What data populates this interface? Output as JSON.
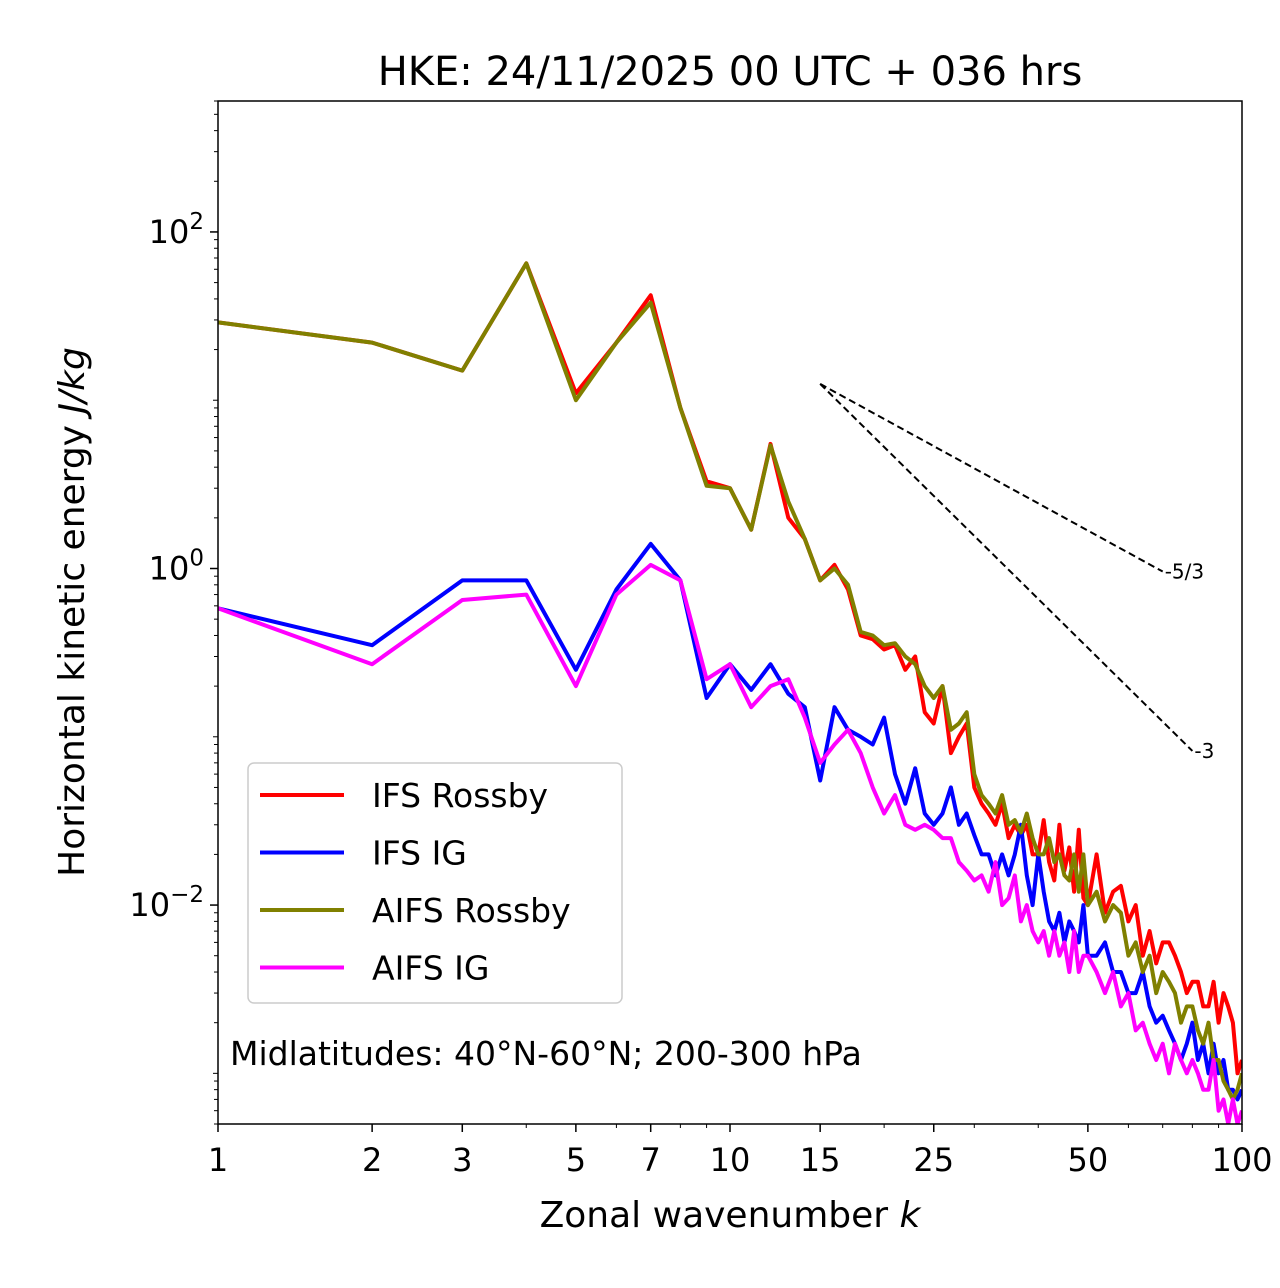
{
  "chart_data": {
    "type": "line",
    "title": "HKE: 24/11/2025 00 UTC + 036 hrs",
    "xlabel_main": "Zonal wavenumber ",
    "xlabel_italic": "k",
    "ylabel_main": "Horizontal kinetic energy ",
    "ylabel_italic": "J/kg",
    "xscale": "log",
    "yscale": "log",
    "xlim": [
      1,
      100
    ],
    "ylim": [
      0.0005,
      600
    ],
    "x_ticks": [
      {
        "value": 1,
        "label": "1"
      },
      {
        "value": 2,
        "label": "2"
      },
      {
        "value": 3,
        "label": "3"
      },
      {
        "value": 5,
        "label": "5"
      },
      {
        "value": 7,
        "label": "7"
      },
      {
        "value": 10,
        "label": "10"
      },
      {
        "value": 15,
        "label": "15"
      },
      {
        "value": 25,
        "label": "25"
      },
      {
        "value": 50,
        "label": "50"
      },
      {
        "value": 100,
        "label": "100"
      }
    ],
    "y_ticks": [
      {
        "value": 100,
        "base": "10",
        "exp": "2"
      },
      {
        "value": 1,
        "base": "10",
        "exp": "0"
      },
      {
        "value": 0.01,
        "base": "10",
        "exp": "−2"
      }
    ],
    "legend_position": "lower-left",
    "annotation": "Midlatitudes: 40°N-60°N; 200-300 hPa",
    "reference_slopes": [
      {
        "label": "-5/3",
        "slope": -1.6667,
        "x_start": 15,
        "x_end": 70,
        "y_start": 12.5
      },
      {
        "label": "-3",
        "slope": -3,
        "x_start": 15,
        "x_end": 80,
        "y_start": 12.5
      }
    ],
    "series": [
      {
        "name": "IFS Rossby",
        "color": "#ff0000",
        "x": [
          1,
          2,
          3,
          4,
          5,
          6,
          7,
          8,
          9,
          10,
          11,
          12,
          13,
          14,
          15,
          16,
          17,
          18,
          19,
          20,
          21,
          22,
          23,
          24,
          25,
          26,
          27,
          28,
          29,
          30,
          31,
          32,
          33,
          34,
          35,
          36,
          37,
          38,
          39,
          40,
          41,
          42,
          43,
          44,
          45,
          46,
          47,
          48,
          49,
          50,
          52,
          54,
          56,
          58,
          60,
          62,
          64,
          66,
          68,
          70,
          72,
          74,
          76,
          78,
          80,
          82,
          84,
          86,
          88,
          90,
          92,
          94,
          96,
          98,
          100
        ],
        "y": [
          29,
          22,
          15,
          65,
          11,
          22,
          42,
          9,
          3.3,
          3,
          1.7,
          5.5,
          2,
          1.5,
          0.85,
          1.05,
          0.75,
          0.4,
          0.38,
          0.33,
          0.35,
          0.25,
          0.3,
          0.14,
          0.12,
          0.2,
          0.08,
          0.1,
          0.12,
          0.05,
          0.04,
          0.035,
          0.03,
          0.04,
          0.025,
          0.03,
          0.026,
          0.03,
          0.02,
          0.02,
          0.032,
          0.018,
          0.014,
          0.03,
          0.016,
          0.022,
          0.012,
          0.028,
          0.011,
          0.01,
          0.02,
          0.009,
          0.012,
          0.013,
          0.008,
          0.01,
          0.005,
          0.007,
          0.0045,
          0.006,
          0.006,
          0.005,
          0.004,
          0.003,
          0.0035,
          0.0035,
          0.0025,
          0.0025,
          0.0035,
          0.002,
          0.003,
          0.0025,
          0.002,
          0.001,
          0.0012
        ]
      },
      {
        "name": "IFS IG",
        "color": "#0000ff",
        "x": [
          1,
          2,
          3,
          4,
          5,
          6,
          7,
          8,
          9,
          10,
          11,
          12,
          13,
          14,
          15,
          16,
          17,
          18,
          19,
          20,
          21,
          22,
          23,
          24,
          25,
          26,
          27,
          28,
          29,
          30,
          31,
          32,
          33,
          34,
          35,
          36,
          37,
          38,
          39,
          40,
          41,
          42,
          43,
          44,
          45,
          46,
          47,
          48,
          49,
          50,
          52,
          54,
          56,
          58,
          60,
          62,
          64,
          66,
          68,
          70,
          72,
          74,
          76,
          78,
          80,
          82,
          84,
          86,
          88,
          90,
          92,
          94,
          96,
          98,
          100
        ],
        "y": [
          0.58,
          0.35,
          0.85,
          0.85,
          0.25,
          0.75,
          1.4,
          0.85,
          0.17,
          0.27,
          0.19,
          0.27,
          0.18,
          0.15,
          0.055,
          0.15,
          0.11,
          0.1,
          0.09,
          0.13,
          0.06,
          0.04,
          0.065,
          0.035,
          0.03,
          0.035,
          0.05,
          0.03,
          0.035,
          0.026,
          0.02,
          0.02,
          0.015,
          0.02,
          0.015,
          0.02,
          0.03,
          0.015,
          0.01,
          0.02,
          0.012,
          0.008,
          0.007,
          0.009,
          0.006,
          0.008,
          0.007,
          0.006,
          0.01,
          0.005,
          0.005,
          0.006,
          0.004,
          0.004,
          0.003,
          0.003,
          0.004,
          0.0025,
          0.002,
          0.0022,
          0.0018,
          0.0015,
          0.0012,
          0.0015,
          0.002,
          0.0012,
          0.0015,
          0.001,
          0.0015,
          0.001,
          0.0012,
          0.0008,
          0.0008,
          0.0007,
          0.0008
        ]
      },
      {
        "name": "AIFS Rossby",
        "color": "#808000",
        "x": [
          1,
          2,
          3,
          4,
          5,
          6,
          7,
          8,
          9,
          10,
          11,
          12,
          13,
          14,
          15,
          16,
          17,
          18,
          19,
          20,
          21,
          22,
          23,
          24,
          25,
          26,
          27,
          28,
          29,
          30,
          31,
          32,
          33,
          34,
          35,
          36,
          37,
          38,
          39,
          40,
          41,
          42,
          43,
          44,
          45,
          46,
          47,
          48,
          49,
          50,
          52,
          54,
          56,
          58,
          60,
          62,
          64,
          66,
          68,
          70,
          72,
          74,
          76,
          78,
          80,
          82,
          84,
          86,
          88,
          90,
          92,
          94,
          96,
          98,
          100
        ],
        "y": [
          29,
          22,
          15,
          65,
          10,
          22,
          38,
          9,
          3.1,
          3,
          1.7,
          5.4,
          2.5,
          1.5,
          0.85,
          1,
          0.8,
          0.42,
          0.4,
          0.35,
          0.36,
          0.3,
          0.27,
          0.2,
          0.17,
          0.2,
          0.11,
          0.12,
          0.14,
          0.06,
          0.045,
          0.04,
          0.035,
          0.045,
          0.03,
          0.032,
          0.027,
          0.035,
          0.025,
          0.02,
          0.02,
          0.025,
          0.018,
          0.02,
          0.015,
          0.014,
          0.02,
          0.012,
          0.02,
          0.01,
          0.012,
          0.008,
          0.01,
          0.009,
          0.005,
          0.006,
          0.004,
          0.005,
          0.003,
          0.004,
          0.0035,
          0.003,
          0.002,
          0.0025,
          0.0025,
          0.0018,
          0.0015,
          0.002,
          0.0012,
          0.0012,
          0.0009,
          0.0008,
          0.0007,
          0.0008,
          0.001
        ]
      },
      {
        "name": "AIFS IG",
        "color": "#ff00ff",
        "x": [
          1,
          2,
          3,
          4,
          5,
          6,
          7,
          8,
          9,
          10,
          11,
          12,
          13,
          14,
          15,
          16,
          17,
          18,
          19,
          20,
          21,
          22,
          23,
          24,
          25,
          26,
          27,
          28,
          29,
          30,
          31,
          32,
          33,
          34,
          35,
          36,
          37,
          38,
          39,
          40,
          41,
          42,
          43,
          44,
          45,
          46,
          47,
          48,
          49,
          50,
          52,
          54,
          56,
          58,
          60,
          62,
          64,
          66,
          68,
          70,
          72,
          74,
          76,
          78,
          80,
          82,
          84,
          86,
          88,
          90,
          92,
          94,
          96,
          98,
          100
        ],
        "y": [
          0.58,
          0.27,
          0.65,
          0.7,
          0.2,
          0.7,
          1.05,
          0.85,
          0.22,
          0.27,
          0.15,
          0.2,
          0.22,
          0.13,
          0.07,
          0.09,
          0.11,
          0.08,
          0.05,
          0.035,
          0.045,
          0.03,
          0.028,
          0.03,
          0.028,
          0.025,
          0.025,
          0.018,
          0.016,
          0.014,
          0.015,
          0.012,
          0.018,
          0.01,
          0.011,
          0.015,
          0.008,
          0.01,
          0.007,
          0.006,
          0.007,
          0.005,
          0.007,
          0.005,
          0.006,
          0.004,
          0.007,
          0.004,
          0.005,
          0.005,
          0.004,
          0.003,
          0.004,
          0.0025,
          0.003,
          0.0018,
          0.002,
          0.0015,
          0.0012,
          0.0015,
          0.001,
          0.0015,
          0.0012,
          0.001,
          0.0012,
          0.001,
          0.0008,
          0.0008,
          0.0012,
          0.0006,
          0.0007,
          0.0005,
          0.0007,
          0.0005,
          0.0006
        ]
      }
    ]
  }
}
